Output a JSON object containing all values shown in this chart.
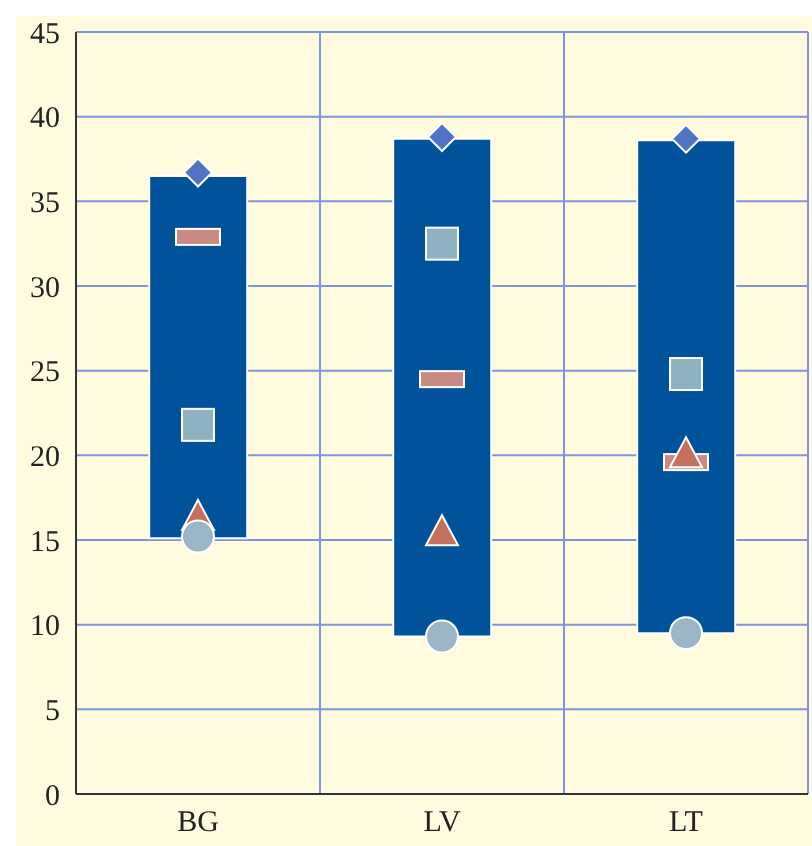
{
  "chart_data": {
    "type": "bar",
    "categories": [
      "BG",
      "LV",
      "LT"
    ],
    "ylim": [
      0,
      45
    ],
    "yticks": [
      0,
      5,
      10,
      15,
      20,
      25,
      30,
      35,
      40,
      45
    ],
    "grid": true,
    "legend": false,
    "series": [
      {
        "color": "#00529b",
        "base": [
          15.1,
          9.3,
          9.5
        ],
        "values": [
          21.4,
          29.4,
          29.1
        ]
      },
      {
        "type": "scatter",
        "marker": "diamond",
        "color": "#4f74c4",
        "values": [
          36.7,
          38.8,
          38.7
        ]
      },
      {
        "type": "scatter",
        "marker": "square",
        "color": "#c98a84",
        "values": [
          32.9,
          24.5,
          19.6
        ]
      },
      {
        "type": "scatter",
        "marker": "square",
        "color": "#8fb2c2",
        "values": [
          21.8,
          32.5,
          24.8
        ]
      },
      {
        "type": "scatter",
        "marker": "triangle",
        "color": "#c4705f",
        "values": [
          16.3,
          15.4,
          20.0
        ]
      },
      {
        "type": "scatter",
        "marker": "circle",
        "color": "#9ab6c6",
        "values": [
          15.2,
          9.3,
          9.5
        ]
      }
    ]
  }
}
